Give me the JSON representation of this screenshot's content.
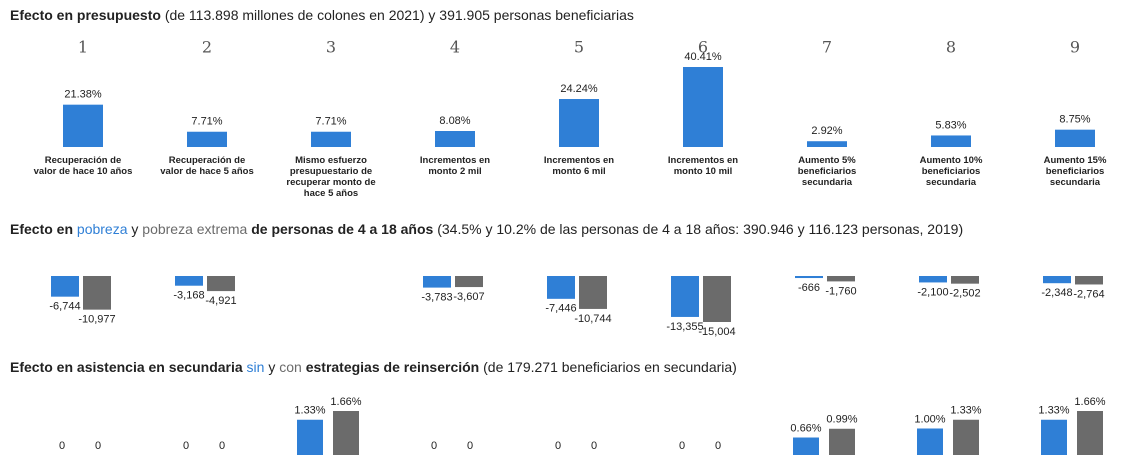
{
  "chart_data": [
    {
      "type": "bar",
      "title": "Efecto en presupuesto",
      "subtitle": "(de 113.898 millones de colones en 2021) y 391.905 personas beneficiarias",
      "categories": [
        "1",
        "2",
        "3",
        "4",
        "5",
        "6",
        "7",
        "8",
        "9"
      ],
      "descriptions": [
        "Recuperación de valor de hace 10 años",
        "Recuperación de valor de hace 5 años",
        "Mismo esfuerzo presupuestario de recuperar monto de hace 5 años",
        "Incrementos en monto 2 mil",
        "Incrementos en monto 6 mil",
        "Incrementos en monto 10 mil",
        "Aumento 5% beneficiarios secundaria",
        "Aumento 10% beneficiarios secundaria",
        "Aumento 15% beneficiarios secundaria"
      ],
      "values": [
        21.38,
        7.71,
        7.71,
        8.08,
        24.24,
        40.41,
        2.92,
        5.83,
        8.75
      ],
      "value_labels": [
        "21.38%",
        "7.71%",
        "7.71%",
        "8.08%",
        "24.24%",
        "40.41%",
        "2.92%",
        "5.83%",
        "8.75%"
      ],
      "color": "#2f7fd6"
    },
    {
      "type": "bar",
      "title_parts": [
        "Efecto en",
        "y",
        "de personas de 4 a 18 años"
      ],
      "subtitle": "(34.5% y 10.2% de las personas de 4 a 18 años: 390.946 y 116.123 personas, 2019)",
      "series": [
        {
          "name": "pobreza",
          "color": "#2f7fd6",
          "values": [
            -6744,
            -3168,
            null,
            -3783,
            -7446,
            -13355,
            -666,
            -2100,
            -2348
          ],
          "value_labels": [
            "-6,744",
            "-3,168",
            null,
            "-3,783",
            "-7,446",
            "-13,355",
            "-666",
            "-2,100",
            "-2,348"
          ]
        },
        {
          "name": "pobreza extrema",
          "color": "#6b6b6b",
          "values": [
            -10977,
            -4921,
            null,
            -3607,
            -10744,
            -15004,
            -1760,
            -2502,
            -2764
          ],
          "value_labels": [
            "-10,977",
            "-4,921",
            null,
            "-3,607",
            "-10,744",
            "-15,004",
            "-1,760",
            "-2,502",
            "-2,764"
          ]
        }
      ]
    },
    {
      "type": "bar",
      "title_parts": [
        "Efecto en asistencia en secundaria",
        "y",
        "estrategias de reinserción"
      ],
      "subtitle": "(de 179.271 beneficiarios en secundaria)",
      "series": [
        {
          "name": "sin",
          "color": "#2f7fd6",
          "values": [
            0,
            0,
            1.33,
            0,
            0,
            0,
            0.66,
            1.0,
            1.33
          ],
          "value_labels": [
            "0",
            "0",
            "1.33%",
            "0",
            "0",
            "0",
            "0.66%",
            "1.00%",
            "1.33%"
          ]
        },
        {
          "name": "con",
          "color": "#6b6b6b",
          "values": [
            0,
            0,
            1.66,
            0,
            0,
            0,
            0.99,
            1.33,
            1.66
          ],
          "value_labels": [
            "0",
            "0",
            "1.66%",
            "0",
            "0",
            "0",
            "0.99%",
            "1.33%",
            "1.66%"
          ]
        }
      ]
    }
  ]
}
